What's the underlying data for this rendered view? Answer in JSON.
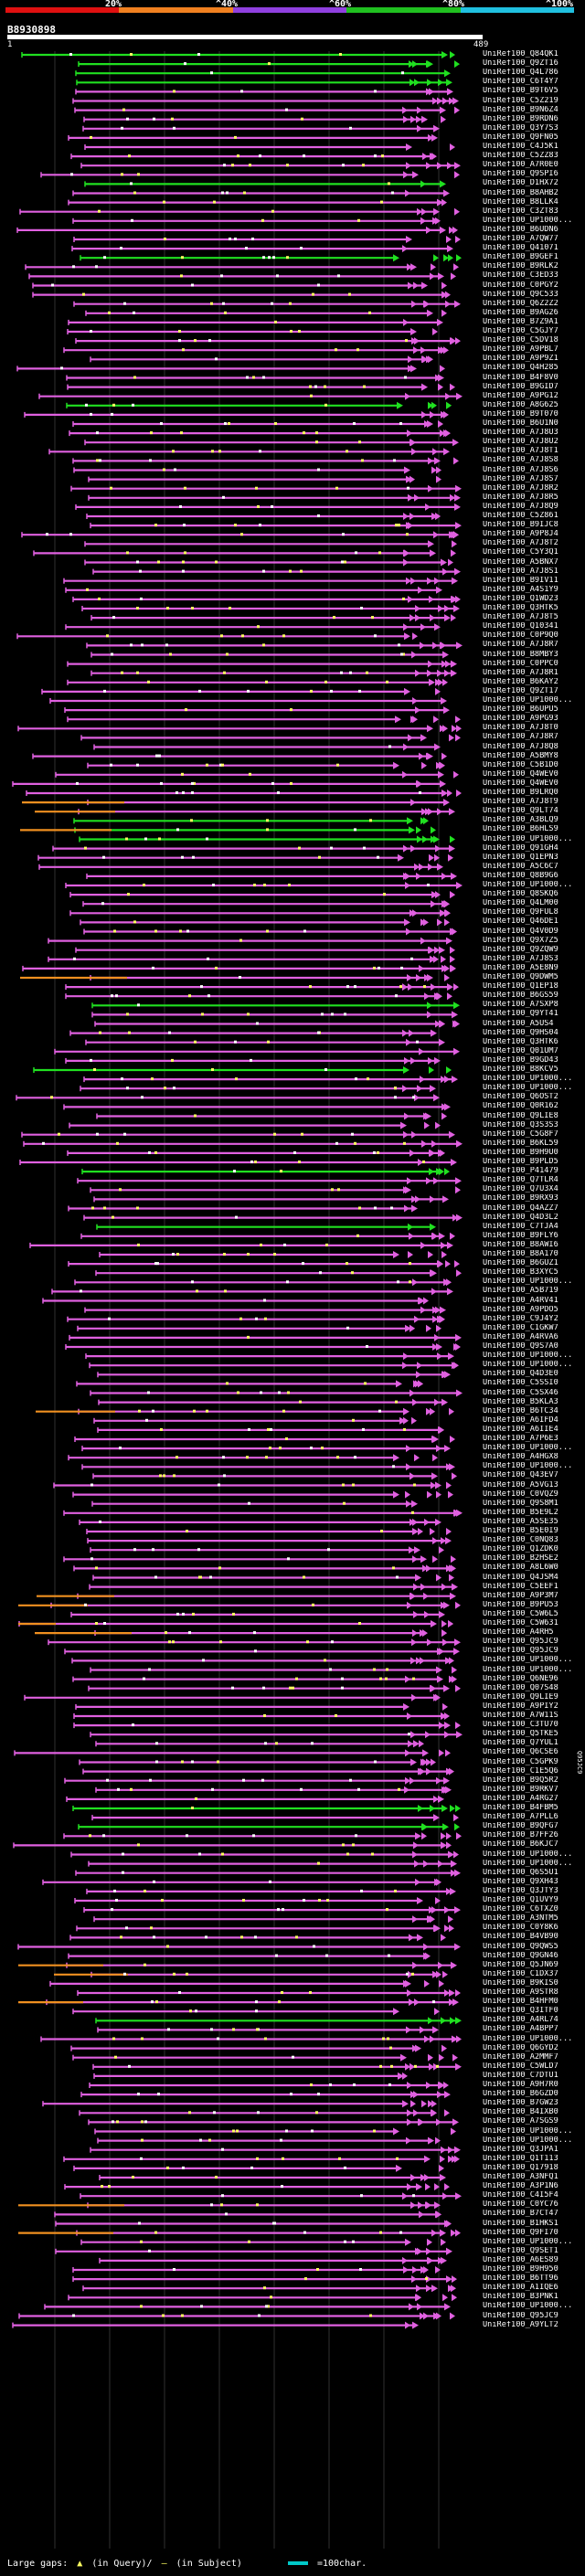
{
  "header": {
    "pct_labels": [
      "20%",
      "^40%",
      "^60%",
      "^80%",
      "^100%"
    ],
    "scale_colors": [
      "#e01010",
      "#f08020",
      "#9040e0",
      "#20c020",
      "#20c0e0"
    ]
  },
  "query": {
    "id": "B8930898",
    "start": "1",
    "end": "489"
  },
  "colors": {
    "hit": "#e060e0",
    "hit_dark": "#c040c0",
    "green": "#20e020",
    "orange": "#f09020",
    "gap": "#ffff60",
    "tick": "#ffffff",
    "background": "#000000"
  },
  "hits": [
    "UniRef100_Q84QK1",
    "UniRef100_Q9ZT16",
    "UniRef100_Q4L786",
    "UniRef100_C6T4Y7",
    "UniRef100_B9T6V5",
    "UniRef100_C5Z219",
    "UniRef100_B9N6Z4",
    "UniRef100_B9RDN6",
    "UniRef100_Q3Y7S3",
    "UniRef100_Q9FN05",
    "UniRef100_C4J5K1",
    "UniRef100_C5ZZ83",
    "UniRef100_A7R0E0",
    "UniRef100_Q9SPI6",
    "UniRef100_D1HX72",
    "UniRef100_B8AHB2",
    "UniRef100_B8LLK4",
    "UniRef100_C3ZT83",
    "UniRef100_UP1000...",
    "UniRef100_B6UDN6",
    "UniRef100_A7QW77",
    "UniRef100_Q41071",
    "UniRef100_B9GEF1",
    "UniRef100_B9RLK2",
    "UniRef100_C3ED33",
    "UniRef100_C0PGY2",
    "UniRef100_Q9C533",
    "UniRef100_Q6Z2Z2",
    "UniRef100_B9AG26",
    "UniRef100_B7Z9A1",
    "UniRef100_C5GJY7",
    "UniRef100_C5DV18",
    "UniRef100_A9PBL7",
    "UniRef100_A9P9Z1",
    "UniRef100_Q4H285",
    "UniRef100_B4F8V0",
    "UniRef100_B9GID7",
    "UniRef100_A9PG12",
    "UniRef100_A8G625",
    "UniRef100_B9T070",
    "UniRef100_B6U1N0",
    "UniRef100_A7J8U3",
    "UniRef100_A7J8U2",
    "UniRef100_A7J8T1",
    "UniRef100_A7J8S8",
    "UniRef100_A7J8S6",
    "UniRef100_A7J8S7",
    "UniRef100_A7J8R2",
    "UniRef100_A7J8R5",
    "UniRef100_A7J8Q9",
    "UniRef100_C5Z861",
    "UniRef100_B9IJC8",
    "UniRef100_A9P8J4",
    "UniRef100_A7J8T2",
    "UniRef100_C5Y3Q1",
    "UniRef100_A5BNX7",
    "UniRef100_A7J8S1",
    "UniRef100_B9IV11",
    "UniRef100_A4S1Y9",
    "UniRef100_Q1WD23",
    "UniRef100_Q3HTK5",
    "UniRef100_A7J8T5",
    "UniRef100_Q10341",
    "UniRef100_C0P9Q0",
    "UniRef100_A7J8R7",
    "UniRef100_B8MBY3",
    "UniRef100_C0PPC0",
    "UniRef100_A7J8R1",
    "UniRef100_B6KAY2",
    "UniRef100_Q9ZT17",
    "UniRef100_UP1000...",
    "UniRef100_B6UPU5",
    "UniRef100_A9PG93",
    "UniRef100_A7J8T0",
    "UniRef100_A7J8R7",
    "UniRef100_A7J8Q8",
    "UniRef100_A5BMY8",
    "UniRef100_C5B1D0",
    "UniRef100_Q4WEV0",
    "UniRef100_Q4WEV0",
    "UniRef100_B9LRQ0",
    "UniRef100_A7J8T9",
    "UniRef100_Q9LT74",
    "UniRef100_A3BLQ9",
    "UniRef100_B6HLS9",
    "UniRef100_UP1000...",
    "UniRef100_Q91GH4",
    "UniRef100_Q1EPN3",
    "UniRef100_A5C6C7",
    "UniRef100_Q8B9G6",
    "UniRef100_UP1000...",
    "UniRef100_Q8SKQ6",
    "UniRef100_Q4LM00",
    "UniRef100_Q9FUL8",
    "UniRef100_Q46DE1",
    "UniRef100_Q4V0D9",
    "UniRef100_Q9X7Z5",
    "UniRef100_Q9ZQW9",
    "UniRef100_A7J8S3",
    "UniRef100_A5E8N9",
    "UniRef100_Q9DWM5",
    "UniRef100_Q1EP18",
    "UniRef100_B6GS59",
    "UniRef100_A7SXP8",
    "UniRef100_Q9YT41",
    "UniRef100_A5US4",
    "UniRef100_Q9HS04",
    "UniRef100_Q3HTK6",
    "UniRef100_Q01UM7",
    "UniRef100_B9GD43",
    "UniRef100_B8KCV5",
    "UniRef100_UP1000...",
    "UniRef100_UP1000...",
    "UniRef100_Q6OST2",
    "UniRef100_Q0R162",
    "UniRef100_Q9LIE8",
    "UniRef100_Q3S3S3",
    "UniRef100_C5G8F7",
    "UniRef100_B6KL59",
    "UniRef100_B9H9U0",
    "UniRef100_B9PLD5",
    "UniRef100_P41479",
    "UniRef100_Q7TLR4",
    "UniRef100_Q7U3X4",
    "UniRef100_B9RX93",
    "UniRef100_Q4AZZ7",
    "UniRef100_Q4D3L2",
    "UniRef100_C7TJA4",
    "UniRef100_B9FLY6",
    "UniRef100_B8AWI6",
    "UniRef100_B8A170",
    "UniRef100_B6GUZ1",
    "UniRef100_B3XYC5",
    "UniRef100_UP1000...",
    "UniRef100_A5B719",
    "UniRef100_A4RV41",
    "UniRef100_A9PDO5",
    "UniRef100_C9J4Y2",
    "UniRef100_C1GKW7",
    "UniRef100_A4RVA6",
    "UniRef100_Q9S7A0",
    "UniRef100_UP1000...",
    "UniRef100_UP1000...",
    "UniRef100_Q4D3E0",
    "UniRef100_C5SSI0",
    "UniRef100_C5SX46",
    "UniRef100_B5KLA3",
    "UniRef100_B6TC34",
    "UniRef100_A6IFD4",
    "UniRef100_A6IIE4",
    "UniRef100_A7P6E3",
    "UniRef100_UP1000...",
    "UniRef100_A4HGX8",
    "UniRef100_UP1000...",
    "UniRef100_Q43EV7",
    "UniRef100_A5VG13",
    "UniRef100_C0VQZ9",
    "UniRef100_Q9S8M1",
    "UniRef100_B5E9L2",
    "UniRef100_A5SE35",
    "UniRef100_B5E0I9",
    "UniRef100_C0NQ83",
    "UniRef100_Q1ZDK0",
    "UniRef100_B2HSE2",
    "UniRef100_A8L6W0",
    "UniRef100_Q4JSM4",
    "UniRef100_C5EEF1",
    "UniRef100_A9P3M7",
    "UniRef100_B9PU53",
    "UniRef100_C5W6L5",
    "UniRef100_C5W631",
    "UniRef100_A4RH5",
    "UniRef100_Q95JC9",
    "UniRef100_Q95JC9",
    "UniRef100_UP1000...",
    "UniRef100_UP1000...",
    "UniRef100_Q6NE96",
    "UniRef100_Q07S48",
    "UniRef100_Q9LIE9",
    "UniRef100_A9PIY2",
    "UniRef100_A7W11S",
    "UniRef100_C3TU70",
    "UniRef100_Q5TKE5",
    "UniRef100_Q7YUL1",
    "UniRef100_Q6CSE6",
    "UniRef100_C5GPK9",
    "UniRef100_C1E5Q6",
    "UniRef100_B9Q5R2",
    "UniRef100_B9RKV7",
    "UniRef100_A4RG27",
    "UniRef100_B4FBM5",
    "UniRef100_A7PLL6",
    "UniRef100_B9QFG7",
    "UniRef100_B7FF26",
    "UniRef100_B6KJC7",
    "UniRef100_UP1000...",
    "UniRef100_UP1000...",
    "UniRef100_Q6S5U1",
    "UniRef100_Q9XH43",
    "UniRef100_Q3JTY3",
    "UniRef100_Q1UVY9",
    "UniRef100_C6TXZ0",
    "UniRef100_A3NTM5",
    "UniRef100_C0Y8K6",
    "UniRef100_B4VB90",
    "UniRef100_Q9QWS5",
    "UniRef100_Q9GN46",
    "UniRef100_Q5JN69",
    "UniRef100_C1DX37",
    "UniRef100_B9KIS0",
    "UniRef100_A9STR8",
    "UniRef100_B4HFM0",
    "UniRef100_Q3ITF0",
    "UniRef100_A4RL74",
    "UniRef100_A4BPP7",
    "UniRef100_UP1000...",
    "UniRef100_Q6GYD2",
    "UniRef100_A2MMF7",
    "UniRef100_C5WLD7",
    "UniRef100_C7DTU1",
    "UniRef100_A9H7R0",
    "UniRef100_B6GZD0",
    "UniRef100_B7GW23",
    "UniRef100_B4IXB0",
    "UniRef100_A7SGS9",
    "UniRef100_UP1000...",
    "UniRef100_UP1000...",
    "UniRef100_Q3JPA1",
    "UniRef100_Q1T113",
    "UniRef100_Q17918",
    "UniRef100_A3NFQ1",
    "UniRef100_A3P1N6",
    "UniRef100_C4I5F4",
    "UniRef100_C0YC76",
    "UniRef100_B7CT47",
    "UniRef100_B1HKS1",
    "UniRef100_Q9FI70",
    "UniRef100_UP1000...",
    "UniRef100_Q9SET1",
    "UniRef100_A6ES89",
    "UniRef100_B9H950",
    "UniRef100_B6TT96",
    "UniRef100_A1IQE6",
    "UniRef100_B3PNK1",
    "UniRef100_UP1000...",
    "UniRef100_Q95JC9",
    "UniRef100_A9YLT2"
  ],
  "side_note": "Q95JC9",
  "legend": {
    "gaps_label": "Large gaps:",
    "query_mark": "▲",
    "query_text": "(in Query)/",
    "subject_mark": "—",
    "subject_text": "(in Subject)",
    "scale_text": "=100char."
  }
}
